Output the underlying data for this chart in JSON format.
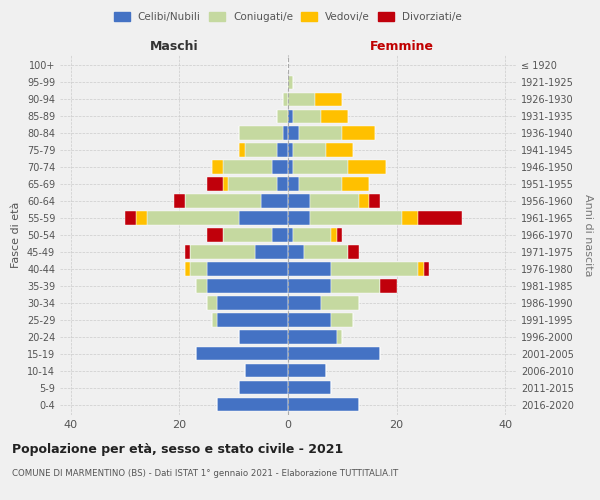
{
  "age_groups": [
    "0-4",
    "5-9",
    "10-14",
    "15-19",
    "20-24",
    "25-29",
    "30-34",
    "35-39",
    "40-44",
    "45-49",
    "50-54",
    "55-59",
    "60-64",
    "65-69",
    "70-74",
    "75-79",
    "80-84",
    "85-89",
    "90-94",
    "95-99",
    "100+"
  ],
  "birth_years": [
    "2016-2020",
    "2011-2015",
    "2006-2010",
    "2001-2005",
    "1996-2000",
    "1991-1995",
    "1986-1990",
    "1981-1985",
    "1976-1980",
    "1971-1975",
    "1966-1970",
    "1961-1965",
    "1956-1960",
    "1951-1955",
    "1946-1950",
    "1941-1945",
    "1936-1940",
    "1931-1935",
    "1926-1930",
    "1921-1925",
    "≤ 1920"
  ],
  "males": {
    "celibi": [
      13,
      9,
      8,
      17,
      9,
      13,
      13,
      15,
      15,
      6,
      3,
      9,
      5,
      2,
      3,
      2,
      1,
      0,
      0,
      0,
      0
    ],
    "coniugati": [
      0,
      0,
      0,
      0,
      0,
      1,
      2,
      2,
      3,
      12,
      9,
      17,
      14,
      9,
      9,
      6,
      8,
      2,
      1,
      0,
      0
    ],
    "vedovi": [
      0,
      0,
      0,
      0,
      0,
      0,
      0,
      0,
      1,
      0,
      0,
      2,
      0,
      1,
      2,
      1,
      0,
      0,
      0,
      0,
      0
    ],
    "divorziati": [
      0,
      0,
      0,
      0,
      0,
      0,
      0,
      0,
      0,
      1,
      3,
      2,
      2,
      3,
      0,
      0,
      0,
      0,
      0,
      0,
      0
    ]
  },
  "females": {
    "nubili": [
      13,
      8,
      7,
      17,
      9,
      8,
      6,
      8,
      8,
      3,
      1,
      4,
      4,
      2,
      1,
      1,
      2,
      1,
      0,
      0,
      0
    ],
    "coniugate": [
      0,
      0,
      0,
      0,
      1,
      4,
      7,
      9,
      16,
      8,
      7,
      17,
      9,
      8,
      10,
      6,
      8,
      5,
      5,
      1,
      0
    ],
    "vedove": [
      0,
      0,
      0,
      0,
      0,
      0,
      0,
      0,
      1,
      0,
      1,
      3,
      2,
      5,
      7,
      5,
      6,
      5,
      5,
      0,
      0
    ],
    "divorziate": [
      0,
      0,
      0,
      0,
      0,
      0,
      0,
      3,
      1,
      2,
      1,
      8,
      2,
      0,
      0,
      0,
      0,
      0,
      0,
      0,
      0
    ]
  },
  "colors": {
    "celibi": "#4472c4",
    "coniugati": "#c5d9a0",
    "vedovi": "#ffc000",
    "divorziati": "#c0000b"
  },
  "xlim": 42,
  "title": "Popolazione per età, sesso e stato civile - 2021",
  "subtitle": "COMUNE DI MARMENTINO (BS) - Dati ISTAT 1° gennaio 2021 - Elaborazione TUTTITALIA.IT",
  "ylabel": "Fasce di età",
  "ylabel_right": "Anni di nascita",
  "xlabel_left": "Maschi",
  "xlabel_right": "Femmine",
  "bg_color": "#f0f0f0",
  "legend_labels": [
    "Celibi/Nubili",
    "Coniugati/e",
    "Vedovi/e",
    "Divorziati/e"
  ]
}
